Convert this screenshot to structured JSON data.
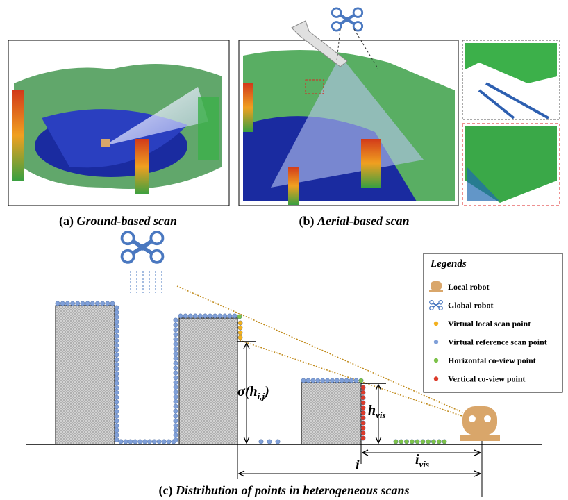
{
  "panels": [
    {
      "label": "(a)",
      "caption": "Ground-based scan"
    },
    {
      "label": "(b)",
      "caption": "Aerial-based scan"
    },
    {
      "label": "(c)",
      "caption": "Distribution of points in heterogeneous scans"
    }
  ],
  "diagram": {
    "sigma_label": {
      "main": "σ(h",
      "sub": "i,j",
      "close": ")"
    },
    "h_vis_label": {
      "main": "h",
      "sub": "vis"
    },
    "i_vis_label": {
      "main": "i",
      "sub": "vis"
    },
    "i_label": "i"
  },
  "legend": {
    "title": "Legends",
    "items": [
      "Local robot",
      "Global robot",
      "Virtual local scan point",
      "Virtual reference scan point",
      "Horizontal co-view point",
      "Vertical co-view point"
    ]
  }
}
